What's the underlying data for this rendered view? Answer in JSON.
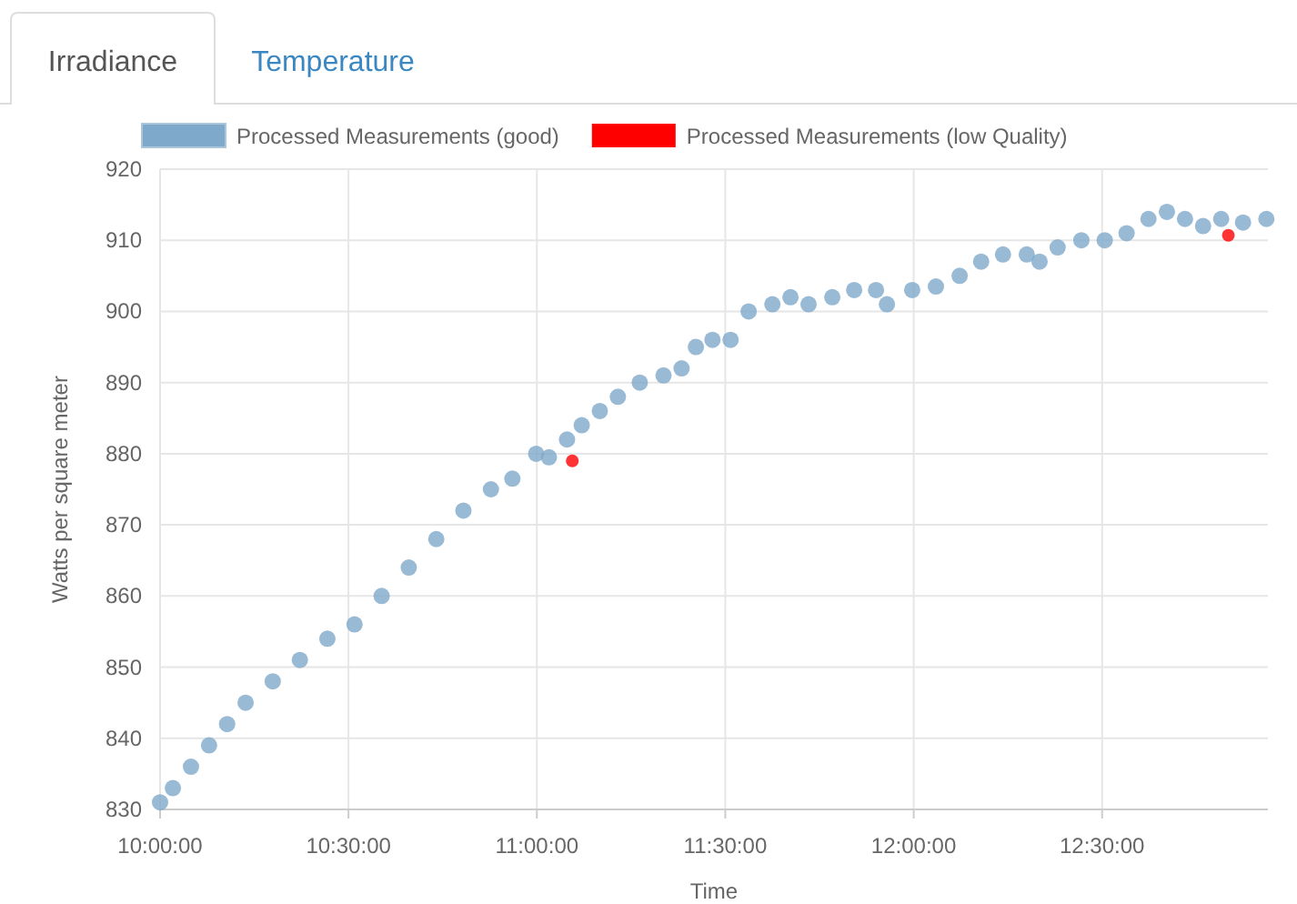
{
  "chart_data": {
    "type": "scatter",
    "xlabel": "Time",
    "ylabel": "Watts per square meter",
    "annotations": [
      "Irradiance",
      "Temperature"
    ],
    "xlim": [
      10,
      12.94
    ],
    "xticks": [
      {
        "value": 10,
        "label": "10:00:00"
      },
      {
        "value": 10.5,
        "label": "10:30:00"
      },
      {
        "value": 11,
        "label": "11:00:00"
      },
      {
        "value": 11.5,
        "label": "11:30:00"
      },
      {
        "value": 12,
        "label": "12:00:00"
      },
      {
        "value": 12.5,
        "label": "12:30:00"
      }
    ],
    "ylim": [
      830,
      920
    ],
    "yticks": [
      830,
      840,
      850,
      860,
      870,
      880,
      890,
      900,
      910,
      920
    ],
    "grid": true,
    "legend": "top",
    "marker": "circle",
    "series": [
      {
        "name": "Processed Measurements (good)",
        "color": "#7fa9cb",
        "x": [
          10.0,
          10.034,
          10.082,
          10.13,
          10.178,
          10.227,
          10.299,
          10.371,
          10.444,
          10.516,
          10.588,
          10.66,
          10.733,
          10.805,
          10.878,
          10.935,
          10.998,
          11.032,
          11.08,
          11.119,
          11.167,
          11.215,
          11.273,
          11.336,
          11.384,
          11.422,
          11.466,
          11.514,
          11.562,
          11.625,
          11.673,
          11.721,
          11.784,
          11.842,
          11.9,
          11.929,
          11.996,
          12.059,
          12.122,
          12.179,
          12.237,
          12.3,
          12.334,
          12.382,
          12.445,
          12.507,
          12.565,
          12.623,
          12.672,
          12.72,
          12.768,
          12.816,
          12.874,
          12.936
        ],
        "values": [
          831,
          833,
          836,
          839,
          842,
          845,
          848,
          851,
          854,
          856,
          860,
          864,
          868,
          872,
          875,
          876.5,
          880,
          879.5,
          882,
          884,
          886,
          888,
          890,
          891,
          892,
          895,
          896,
          896,
          900,
          901,
          902,
          901,
          902,
          903,
          903,
          901,
          903,
          903.5,
          905,
          907,
          908,
          908,
          907,
          909,
          910,
          910,
          911,
          913,
          914,
          913,
          912,
          913,
          912.5,
          913
        ]
      },
      {
        "name": "Processed Measurements (low Quality)",
        "color": "#ff0000",
        "x": [
          11.094,
          12.835
        ],
        "values": [
          879,
          910.7
        ]
      }
    ]
  }
}
